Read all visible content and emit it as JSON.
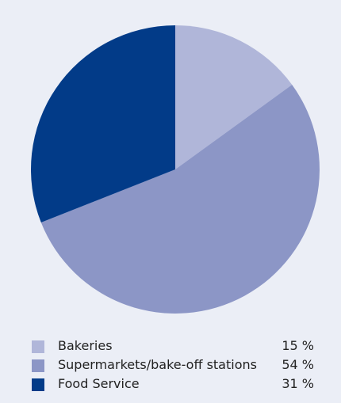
{
  "chart_data": {
    "type": "pie",
    "title": "",
    "legend_position": "bottom",
    "slices": [
      {
        "label": "Bakeries",
        "value": 15,
        "value_label": "15 %",
        "color": "#b0b6d9"
      },
      {
        "label": "Supermarkets/bake-off stations",
        "value": 54,
        "value_label": "54 %",
        "color": "#8c96c6"
      },
      {
        "label": "Food Service",
        "value": 31,
        "value_label": "31 %",
        "color": "#023b88"
      }
    ]
  }
}
